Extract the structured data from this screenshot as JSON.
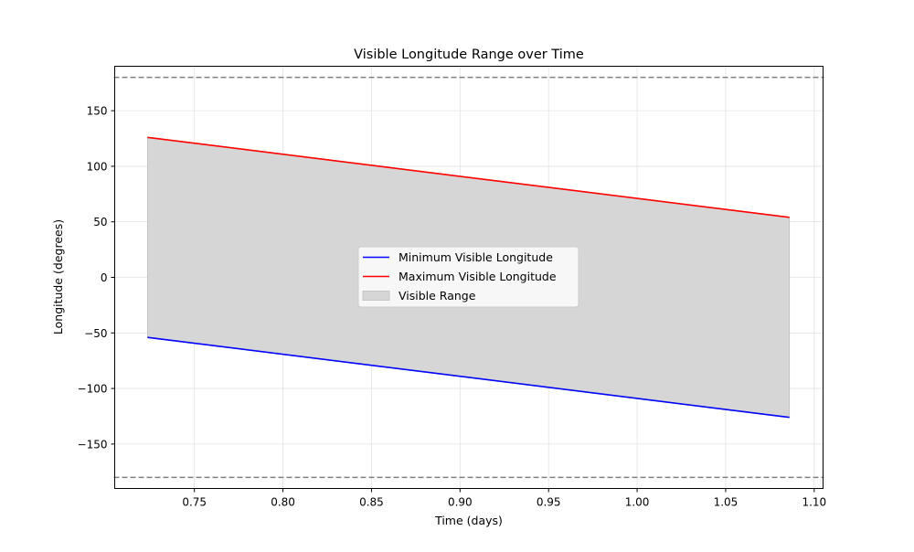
{
  "chart_data": {
    "type": "line",
    "title": "Visible Longitude Range over Time",
    "xlabel": "Time (days)",
    "ylabel": "Longitude (degrees)",
    "xlim": [
      0.705,
      1.105
    ],
    "ylim": [
      -190,
      190
    ],
    "x_ticks": [
      0.75,
      0.8,
      0.85,
      0.9,
      0.95,
      1.0,
      1.05,
      1.1
    ],
    "x_tick_labels": [
      "0.75",
      "0.80",
      "0.85",
      "0.90",
      "0.95",
      "1.00",
      "1.05",
      "1.10"
    ],
    "y_ticks": [
      -150,
      -100,
      -50,
      0,
      50,
      100,
      150
    ],
    "y_tick_labels": [
      "−150",
      "−100",
      "−50",
      "0",
      "50",
      "100",
      "150"
    ],
    "grid": true,
    "legend_position": "center",
    "reference_lines": [
      {
        "y": 180,
        "style": "dashed",
        "color": "#808080"
      },
      {
        "y": -180,
        "style": "dashed",
        "color": "#808080"
      }
    ],
    "series": [
      {
        "name": "Minimum Visible Longitude",
        "color": "#0000ff",
        "x": [
          0.7235,
          1.086
        ],
        "y": [
          -54,
          -126
        ]
      },
      {
        "name": "Maximum Visible Longitude",
        "color": "#ff0000",
        "x": [
          0.7235,
          1.086
        ],
        "y": [
          126,
          54
        ]
      }
    ],
    "fill": {
      "name": "Visible Range",
      "color": "#d6d6d6",
      "edge_color": "#bdbdbd",
      "between": [
        "Minimum Visible Longitude",
        "Maximum Visible Longitude"
      ]
    }
  }
}
